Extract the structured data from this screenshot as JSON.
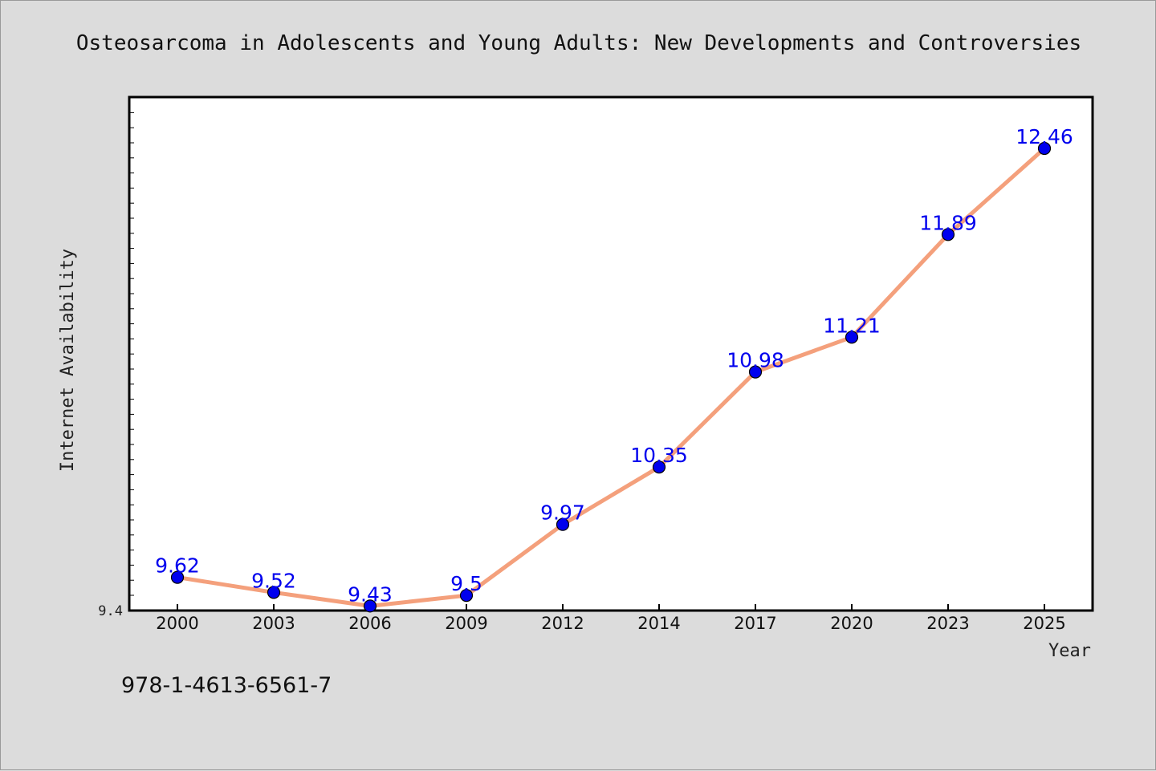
{
  "chart_data": {
    "type": "line",
    "title": "Osteosarcoma in Adolescents and Young Adults: New Developments and Controversies",
    "xlabel": "Year",
    "ylabel": "Internet Availability",
    "categories": [
      "2000",
      "2003",
      "2006",
      "2009",
      "2012",
      "2014",
      "2017",
      "2020",
      "2023",
      "2025"
    ],
    "series": [
      {
        "values": [
          9.62,
          9.52,
          9.43,
          9.5,
          9.97,
          10.35,
          10.98,
          11.21,
          11.89,
          12.46
        ],
        "labels": [
          "9.62",
          "9.52",
          "9.43",
          "9.5",
          "9.97",
          "10.35",
          "10.98",
          "11.21",
          "11.89",
          "12.46"
        ],
        "line_color": "#f4a07c",
        "marker_color": "#0000ee"
      }
    ],
    "ylim": [
      9.4,
      12.8
    ],
    "yticks": [
      "9.4"
    ],
    "grid": false,
    "legend": "none"
  },
  "footer": {
    "isbn": "978-1-4613-6561-7"
  }
}
